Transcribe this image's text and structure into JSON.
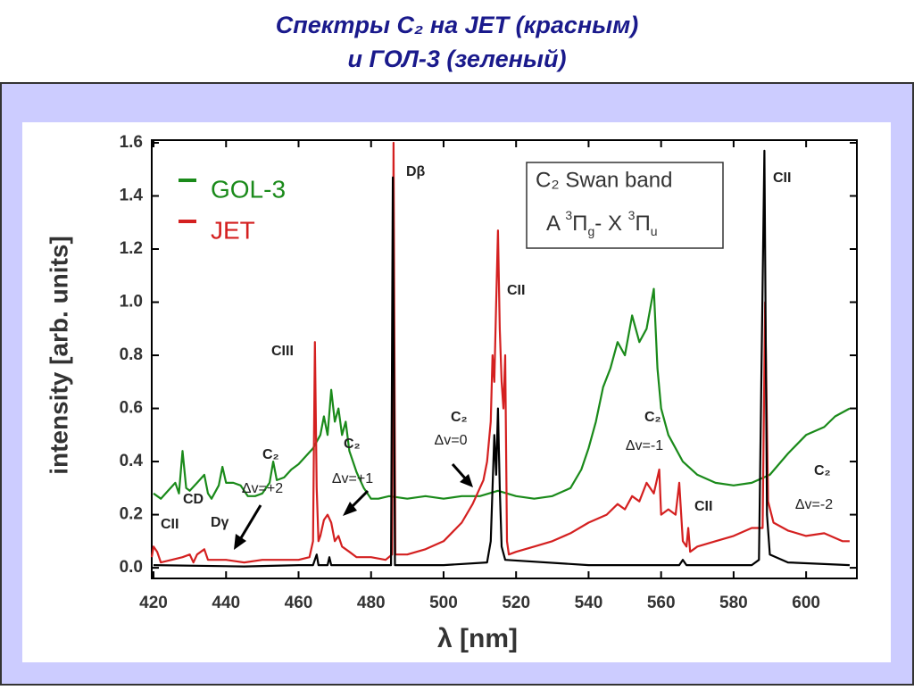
{
  "title_lines": [
    "Спектры C₂ на JET (красным)",
    "и ГОЛ-3 (зеленый)"
  ],
  "chart_data": {
    "type": "line",
    "xlabel": "λ [nm]",
    "ylabel": "intensity [arb. units]",
    "xlim": [
      419.5,
      614
    ],
    "ylim": [
      -0.04,
      1.61
    ],
    "xticks": [
      420,
      440,
      460,
      480,
      500,
      520,
      540,
      560,
      580,
      600
    ],
    "yticks": [
      {
        "value": 0,
        "label": "0.0"
      },
      0.2,
      0.4,
      0.6,
      0.8,
      {
        "value": 1,
        "label": "1.0"
      },
      1.2,
      1.4,
      1.6
    ],
    "box_title": "C₂  Swan band",
    "box_formula": [
      "A ",
      "3",
      "Π",
      "g",
      "- X ",
      "3",
      "Π",
      "u"
    ],
    "annotations": [
      "Dβ",
      "CII",
      "CII",
      "CIII",
      "C₂",
      "Δv=0",
      "C₂",
      "Δv=-1",
      "C₂",
      "Δv=-2",
      "CII",
      "C₂",
      "Δv=+2",
      "C₂",
      "Δv=+1",
      "CD",
      "Dγ",
      "CII"
    ],
    "series": [
      {
        "color": "#000000",
        "x": [
          420,
          445,
          460,
          464,
          465,
          465.5,
          468,
          468.5,
          469,
          485.5,
          486,
          486.6,
          500,
          512,
          513,
          514,
          514.5,
          515,
          515.5,
          516,
          517,
          540,
          565,
          566,
          567,
          585,
          587,
          588.5,
          589.2,
          590,
          595,
          612
        ],
        "values": [
          0.01,
          0.005,
          0.01,
          0.01,
          0.05,
          0.01,
          0.01,
          0.04,
          0.01,
          0.01,
          1.47,
          0.01,
          0.01,
          0.02,
          0.1,
          0.5,
          0.35,
          0.6,
          0.3,
          0.08,
          0.03,
          0.01,
          0.01,
          0.03,
          0.01,
          0.01,
          0.03,
          1.57,
          0.2,
          0.05,
          0.02,
          0.01
        ]
      },
      {
        "name": "GOL-3",
        "color": "#1a8a1a",
        "x": [
          420,
          422,
          424,
          426,
          427,
          428,
          429,
          430,
          432,
          434,
          435,
          436,
          438,
          439,
          440,
          442,
          444,
          446,
          448,
          450,
          452,
          453,
          454,
          456,
          458,
          460,
          462,
          464,
          466,
          467,
          468,
          469,
          470,
          471,
          472,
          473,
          474,
          476,
          478,
          480,
          482,
          485,
          490,
          495,
          500,
          505,
          510,
          515,
          520,
          525,
          530,
          535,
          538,
          540,
          542,
          544,
          546,
          548,
          550,
          552,
          554,
          556,
          558,
          559,
          560,
          562,
          564,
          566,
          570,
          575,
          580,
          585,
          590,
          595,
          600,
          605,
          608,
          612
        ],
        "values": [
          0.28,
          0.26,
          0.29,
          0.32,
          0.28,
          0.44,
          0.3,
          0.29,
          0.32,
          0.35,
          0.28,
          0.26,
          0.31,
          0.38,
          0.32,
          0.32,
          0.31,
          0.27,
          0.27,
          0.28,
          0.32,
          0.4,
          0.33,
          0.34,
          0.37,
          0.39,
          0.42,
          0.45,
          0.5,
          0.57,
          0.5,
          0.67,
          0.55,
          0.6,
          0.5,
          0.55,
          0.44,
          0.36,
          0.3,
          0.26,
          0.26,
          0.27,
          0.26,
          0.27,
          0.26,
          0.27,
          0.27,
          0.29,
          0.27,
          0.26,
          0.27,
          0.3,
          0.37,
          0.45,
          0.55,
          0.68,
          0.75,
          0.85,
          0.8,
          0.95,
          0.85,
          0.9,
          1.05,
          0.75,
          0.6,
          0.5,
          0.45,
          0.4,
          0.35,
          0.32,
          0.31,
          0.32,
          0.35,
          0.43,
          0.5,
          0.53,
          0.57,
          0.6
        ]
      },
      {
        "name": "JET",
        "color": "#d42020",
        "x": [
          419.5,
          420,
          421,
          422,
          425,
          428,
          430,
          431,
          432,
          434,
          435,
          440,
          445,
          450,
          455,
          460,
          463,
          464,
          464.5,
          465,
          465.5,
          466,
          467,
          468,
          469,
          470,
          471,
          472,
          474,
          476,
          480,
          484,
          485.8,
          486.2,
          486.7,
          490,
          495,
          500,
          505,
          508,
          511,
          512,
          513,
          513.5,
          514,
          514.5,
          515,
          515.5,
          516,
          516.5,
          517,
          517.5,
          518,
          520,
          525,
          530,
          535,
          540,
          545,
          548,
          550,
          552,
          554,
          556,
          558,
          559.5,
          560,
          562,
          564,
          565,
          566,
          567,
          567.5,
          568,
          570,
          575,
          580,
          585,
          588,
          588.7,
          589.5,
          591,
          595,
          600,
          605,
          610,
          612
        ],
        "values": [
          0.04,
          0.08,
          0.06,
          0.02,
          0.03,
          0.04,
          0.05,
          0.02,
          0.05,
          0.07,
          0.03,
          0.03,
          0.02,
          0.03,
          0.03,
          0.03,
          0.04,
          0.1,
          0.85,
          0.3,
          0.1,
          0.12,
          0.18,
          0.2,
          0.17,
          0.1,
          0.12,
          0.08,
          0.06,
          0.04,
          0.04,
          0.03,
          0.05,
          1.6,
          0.05,
          0.05,
          0.07,
          0.1,
          0.17,
          0.24,
          0.33,
          0.4,
          0.55,
          0.8,
          0.7,
          1.0,
          1.27,
          0.9,
          0.7,
          0.6,
          0.8,
          0.1,
          0.05,
          0.06,
          0.08,
          0.1,
          0.13,
          0.17,
          0.2,
          0.24,
          0.22,
          0.27,
          0.25,
          0.32,
          0.28,
          0.37,
          0.2,
          0.22,
          0.2,
          0.32,
          0.1,
          0.08,
          0.15,
          0.06,
          0.08,
          0.1,
          0.12,
          0.15,
          0.15,
          1.0,
          0.25,
          0.17,
          0.14,
          0.12,
          0.13,
          0.1,
          0.1
        ]
      }
    ]
  }
}
